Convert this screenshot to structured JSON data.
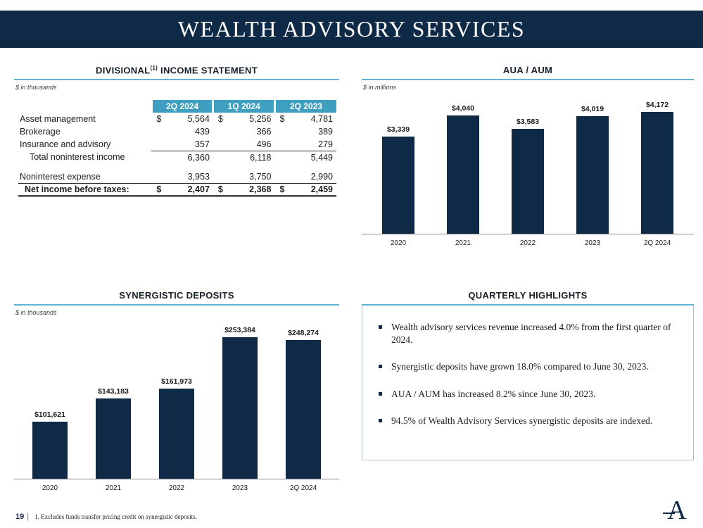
{
  "slide": {
    "title": "WEALTH ADVISORY SERVICES",
    "page_number": "19",
    "page_sep": "|",
    "footnote": "1. Excludes funds transfer pricing credit on synergistic deposits.",
    "logo_letter": "A"
  },
  "colors": {
    "navy": "#0e2a47",
    "table_header_teal": "#3f9fc1",
    "accent_line": "#5fb4d5",
    "bar": "#0e2a47"
  },
  "income_statement": {
    "title_prefix": "DIVISIONAL",
    "title_sup": "(1)",
    "title_suffix": " INCOME STATEMENT",
    "unit_note": "$ in thousands",
    "columns": [
      "2Q 2024",
      "1Q 2024",
      "2Q 2023"
    ],
    "rows": [
      {
        "label": "Asset management",
        "dollar": true,
        "values": [
          "5,564",
          "5,256",
          "4,781"
        ]
      },
      {
        "label": "Brokerage",
        "values": [
          "439",
          "366",
          "389"
        ]
      },
      {
        "label": "Insurance and advisory",
        "values": [
          "357",
          "496",
          "279"
        ],
        "underline": true
      },
      {
        "label": "Total noninterest income",
        "indent": true,
        "values": [
          "6,360",
          "6,118",
          "5,449"
        ]
      },
      {
        "spacer": true
      },
      {
        "label": "Noninterest expense",
        "values": [
          "3,953",
          "3,750",
          "2,990"
        ],
        "underline": true
      },
      {
        "label": "Net income before taxes:",
        "indent_sm": true,
        "dollar": true,
        "values": [
          "2,407",
          "2,368",
          "2,459"
        ],
        "total": true
      }
    ]
  },
  "chart_data": [
    {
      "type": "bar",
      "title": "AUA / AUM",
      "unit_note": "$ in millions",
      "categories": [
        "2020",
        "2021",
        "2022",
        "2023",
        "2Q 2024"
      ],
      "values": [
        3339,
        4040,
        3583,
        4019,
        4172
      ],
      "labels": [
        "$3,339",
        "$4,040",
        "$3,583",
        "$4,019",
        "$4,172"
      ],
      "ylim": [
        0,
        4600
      ],
      "grid": false,
      "legend": false
    },
    {
      "type": "bar",
      "title": "SYNERGISTIC DEPOSITS",
      "unit_note": "$ in thousands",
      "categories": [
        "2020",
        "2021",
        "2022",
        "2023",
        "2Q 2024"
      ],
      "values": [
        101621,
        143183,
        161973,
        253384,
        248274
      ],
      "labels": [
        "$101,621",
        "$143,183",
        "$161,973",
        "$253,384",
        "$248,274"
      ],
      "ylim": [
        0,
        280000
      ],
      "grid": false,
      "legend": false
    }
  ],
  "highlights": {
    "title": "QUARTERLY HIGHLIGHTS",
    "items": [
      "Wealth advisory services revenue increased 4.0% from the first quarter of 2024.",
      "Synergistic deposits have grown 18.0% compared to June 30, 2023.",
      "AUA / AUM has increased 8.2% since June 30, 2023.",
      "94.5% of Wealth Advisory Services synergistic deposits are indexed."
    ]
  }
}
